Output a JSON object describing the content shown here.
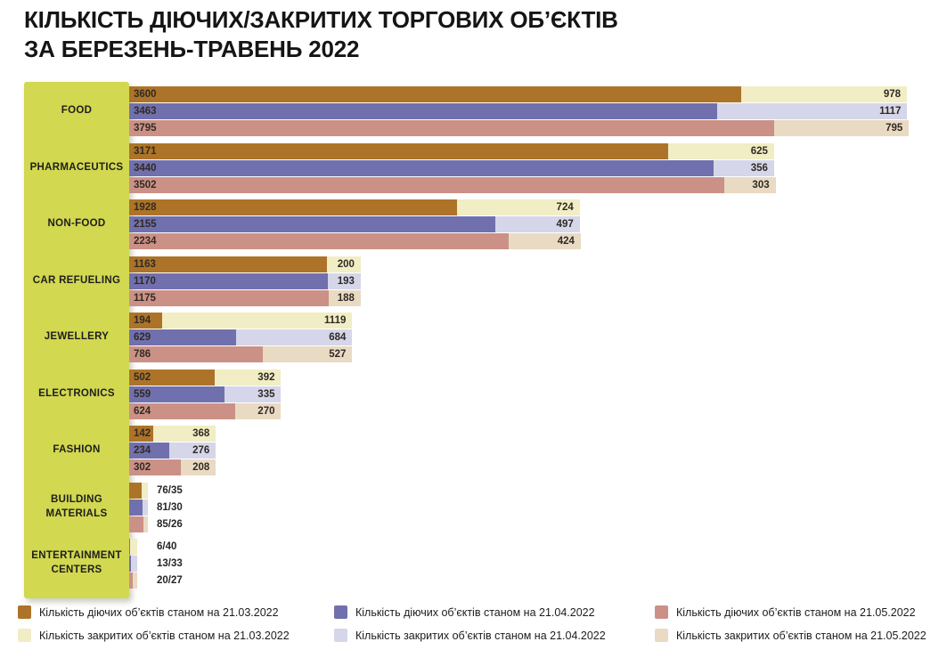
{
  "title": {
    "line1": "КІЛЬКІСТЬ ДІЮЧИХ/ЗАКРИТИХ ТОРГОВИХ ОБ’ЄКТІВ",
    "line2": "ЗА БЕРЕЗЕНЬ-ТРАВЕНЬ 2022"
  },
  "colors": {
    "sidebar": "#d2d84f",
    "open_2103": "#ad7429",
    "open_2104": "#7170ae",
    "open_2105": "#cb9186",
    "closed_2103": "#f1edc4",
    "closed_2104": "#d5d6e9",
    "closed_2105": "#e9dac4",
    "value_text": "#302a24",
    "title_text": "#151515"
  },
  "chart_data": {
    "type": "bar",
    "orientation": "horizontal",
    "stacked": true,
    "title": "КІЛЬКІСТЬ ДІЮЧИХ/ЗАКРИТИХ ТОРГОВИХ ОБ’ЄКТІВ ЗА БЕРЕЗЕНЬ-ТРАВЕНЬ 2022",
    "dates": [
      "21.03.2022",
      "21.04.2022",
      "21.05.2022"
    ],
    "categories": [
      "FOOD",
      "PHARMACEUTICS",
      "NON-FOOD",
      "CAR REFUELING",
      "JEWELLERY",
      "ELECTRONICS",
      "FASHION",
      "BUILDING MATERIALS",
      "ENTERTAINMENT CENTERS"
    ],
    "label_mode": [
      "inside",
      "inside",
      "inside",
      "inside",
      "inside",
      "inside",
      "inside",
      "outside",
      "outside"
    ],
    "series": [
      {
        "name": "Кількість діючих об’єктів станом на 21.03.2022",
        "role": "open",
        "date": "21.03.2022",
        "color": "#ad7429",
        "values": [
          3600,
          3171,
          1928,
          1163,
          194,
          502,
          142,
          76,
          6
        ]
      },
      {
        "name": "Кількість діючих об’єктів станом на 21.04.2022",
        "role": "open",
        "date": "21.04.2022",
        "color": "#7170ae",
        "values": [
          3463,
          3440,
          2155,
          1170,
          629,
          559,
          234,
          81,
          13
        ]
      },
      {
        "name": "Кількість діючих об’єктів станом на 21.05.2022",
        "role": "open",
        "date": "21.05.2022",
        "color": "#cb9186",
        "values": [
          3795,
          3502,
          2234,
          1175,
          786,
          624,
          302,
          85,
          20
        ]
      },
      {
        "name": "Кількість закритих об’єктів станом на 21.03.2022",
        "role": "closed",
        "date": "21.03.2022",
        "color": "#f1edc4",
        "values": [
          978,
          625,
          724,
          200,
          1119,
          392,
          368,
          35,
          40
        ]
      },
      {
        "name": "Кількість закритих об’єктів станом на 21.04.2022",
        "role": "closed",
        "date": "21.04.2022",
        "color": "#d5d6e9",
        "values": [
          1117,
          356,
          497,
          193,
          684,
          335,
          276,
          30,
          33
        ]
      },
      {
        "name": "Кількість закритих об’єктів станом на 21.05.2022",
        "role": "closed",
        "date": "21.05.2022",
        "color": "#e9dac4",
        "values": [
          795,
          303,
          424,
          188,
          527,
          270,
          208,
          26,
          27
        ]
      }
    ]
  },
  "legend": {
    "items": [
      {
        "label": "Кількість діючих об’єктів станом на 21.03.2022",
        "color": "#ad7429"
      },
      {
        "label": "Кількість діючих об’єктів станом на 21.04.2022",
        "color": "#7170ae"
      },
      {
        "label": "Кількість діючих об’єктів станом на 21.05.2022",
        "color": "#cb9186"
      },
      {
        "label": "Кількість закритих об’єктів станом на 21.03.2022",
        "color": "#f1edc4"
      },
      {
        "label": "Кількість закритих об’єктів станом на 21.04.2022",
        "color": "#d5d6e9"
      },
      {
        "label": "Кількість закритих об’єктів станом на 21.05.2022",
        "color": "#e9dac4"
      }
    ]
  }
}
